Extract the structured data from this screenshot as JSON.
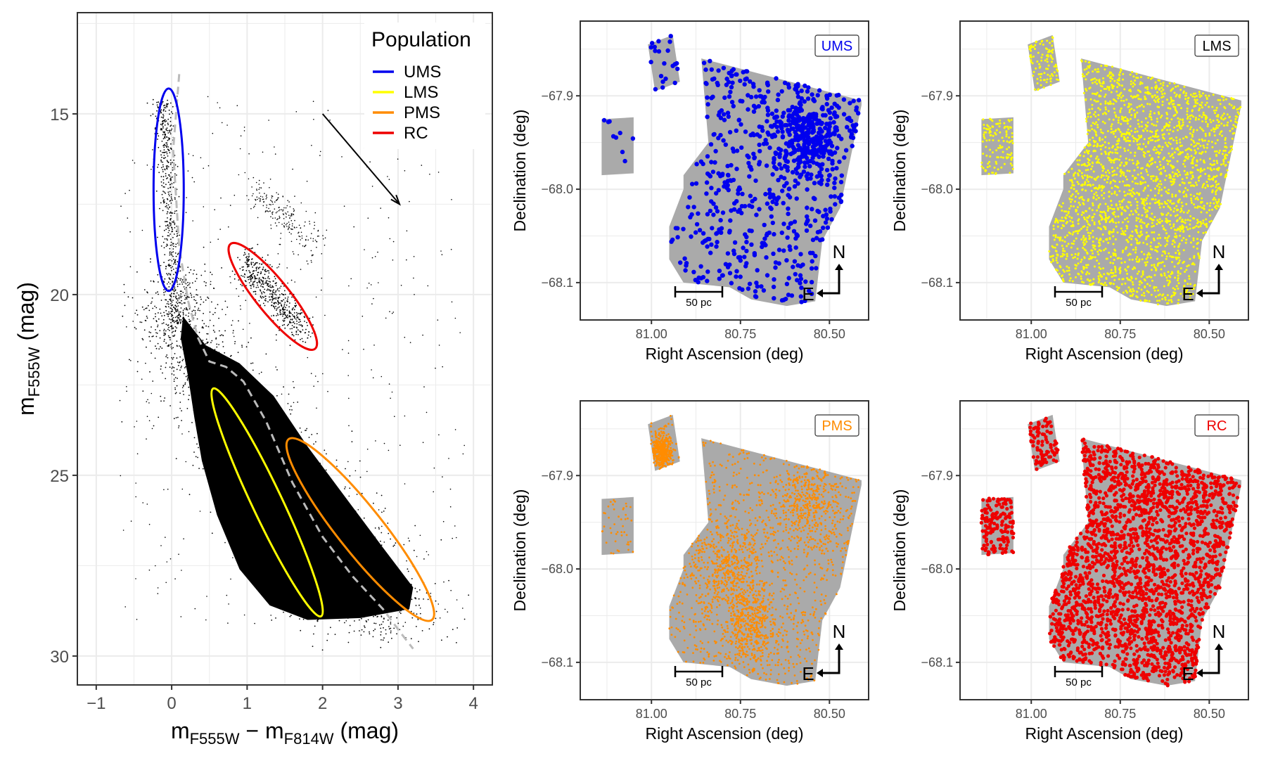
{
  "chart_data": [
    {
      "id": "cmd",
      "type": "scatter",
      "xlabel": "m_F555W − m_F814W (mag)",
      "xlabel_parts": {
        "m1": "m",
        "s1": "F555W",
        "op": " − ",
        "m2": "m",
        "s2": "F814W",
        "unit": " (mag)"
      },
      "ylabel": "m_F555W (mag)",
      "ylabel_parts": {
        "m": "m",
        "s": "F555W",
        "unit": " (mag)"
      },
      "xlim": [
        -1.25,
        4.25
      ],
      "ylim": [
        30.8,
        12.2
      ],
      "y_inverted": true,
      "xticks": [
        -1,
        0,
        1,
        2,
        3,
        4
      ],
      "xtick_labels": [
        "−1",
        "0",
        "1",
        "2",
        "3",
        "4"
      ],
      "yticks": [
        15,
        20,
        25,
        30
      ],
      "ytick_labels": [
        "15",
        "20",
        "25",
        "30"
      ],
      "grid": true,
      "legend": {
        "title": "Population",
        "placement": "top-right",
        "entries": [
          {
            "label": "UMS",
            "color": "#0000ee"
          },
          {
            "label": "LMS",
            "color": "#ffff00"
          },
          {
            "label": "PMS",
            "color": "#ff8c00"
          },
          {
            "label": "RC",
            "color": "#ee0000"
          }
        ]
      },
      "selection_ellipses": [
        {
          "population": "UMS",
          "color": "#0000ee",
          "center": [
            -0.04,
            17.1
          ],
          "semi_axes_data": [
            0.2,
            2.8
          ],
          "angle_deg": 0
        },
        {
          "population": "RC",
          "color": "#ee0000",
          "center_data": [
            1.33,
            20.0
          ],
          "endpoints": [
            [
              0.78,
              18.6
            ],
            [
              1.9,
              21.5
            ]
          ],
          "minor_data": 0.22
        },
        {
          "population": "LMS",
          "color": "#ffff00",
          "endpoints": [
            [
              0.55,
              22.6
            ],
            [
              1.98,
              28.9
            ]
          ],
          "minor_data": 0.2
        },
        {
          "population": "PMS",
          "color": "#ff8c00",
          "endpoints": [
            [
              1.55,
              24.0
            ],
            [
              3.45,
              29.0
            ]
          ],
          "minor_data": 0.3
        }
      ],
      "isochrone": {
        "color": "#bbbbbb",
        "dash": "dashed",
        "points": [
          [
            0.1,
            13.9
          ],
          [
            0.02,
            16.0
          ],
          [
            0.1,
            18.7
          ],
          [
            0.22,
            20.2
          ],
          [
            0.35,
            21.2
          ],
          [
            0.5,
            21.85
          ],
          [
            0.72,
            22.0
          ],
          [
            0.95,
            22.4
          ],
          [
            1.25,
            23.5
          ],
          [
            1.6,
            25.2
          ],
          [
            2.0,
            26.7
          ],
          [
            2.4,
            27.8
          ],
          [
            2.8,
            28.7
          ],
          [
            3.05,
            29.4
          ],
          [
            3.2,
            29.8
          ]
        ]
      },
      "reddening_vector": {
        "start": [
          2.0,
          15.0
        ],
        "end": [
          3.02,
          17.5
        ],
        "color": "#000000"
      }
    },
    {
      "id": "map-ums",
      "type": "scatter",
      "label": "UMS",
      "color": "#0000ee",
      "xlabel": "Right Ascension (deg)",
      "ylabel": "Declination (deg)",
      "xlim": [
        81.2,
        80.39
      ],
      "ylim": [
        -68.14,
        -67.82
      ],
      "xticks": [
        81.0,
        80.75,
        80.5
      ],
      "xtick_labels": [
        "81.00",
        "80.75",
        "80.50"
      ],
      "yticks": [
        -67.9,
        -68.0,
        -68.1
      ],
      "ytick_labels": [
        "−67.9",
        "−68.0",
        "−68.1"
      ],
      "scalebar": "50 pc",
      "compass": {
        "north": "N",
        "east": "E"
      },
      "point_count": 900
    },
    {
      "id": "map-lms",
      "type": "scatter",
      "label": "LMS",
      "color": "#ffff00",
      "xlabel": "Right Ascension (deg)",
      "ylabel": "Declination (deg)",
      "xlim": [
        81.2,
        80.39
      ],
      "ylim": [
        -68.14,
        -67.82
      ],
      "xticks": [
        81.0,
        80.75,
        80.5
      ],
      "xtick_labels": [
        "81.00",
        "80.75",
        "80.50"
      ],
      "yticks": [
        -67.9,
        -68.0,
        -68.1
      ],
      "ytick_labels": [
        "−67.9",
        "−68.0",
        "−68.1"
      ],
      "scalebar": "50 pc",
      "compass": {
        "north": "N",
        "east": "E"
      },
      "point_count": 9000
    },
    {
      "id": "map-pms",
      "type": "scatter",
      "label": "PMS",
      "color": "#ff8c00",
      "xlabel": "Right Ascension (deg)",
      "ylabel": "Declination (deg)",
      "xlim": [
        81.2,
        80.39
      ],
      "ylim": [
        -68.14,
        -67.82
      ],
      "xticks": [
        81.0,
        80.75,
        80.5
      ],
      "xtick_labels": [
        "81.00",
        "80.75",
        "80.50"
      ],
      "yticks": [
        -67.9,
        -68.0,
        -68.1
      ],
      "ytick_labels": [
        "−67.9",
        "−68.0",
        "−68.1"
      ],
      "scalebar": "50 pc",
      "compass": {
        "north": "N",
        "east": "E"
      },
      "point_count": 6000
    },
    {
      "id": "map-rc",
      "type": "scatter",
      "label": "RC",
      "color": "#ee0000",
      "xlabel": "Right Ascension (deg)",
      "ylabel": "Declination (deg)",
      "xlim": [
        81.2,
        80.39
      ],
      "ylim": [
        -68.14,
        -67.82
      ],
      "xticks": [
        81.0,
        80.75,
        80.5
      ],
      "xtick_labels": [
        "81.00",
        "80.75",
        "80.50"
      ],
      "yticks": [
        -67.9,
        -68.0,
        -68.1
      ],
      "ytick_labels": [
        "−67.9",
        "−68.0",
        "−68.1"
      ],
      "scalebar": "50 pc",
      "compass": {
        "north": "N",
        "east": "E"
      },
      "point_count": 3500
    }
  ],
  "colors": {
    "footprint_gray": "#aaaaaa",
    "grid": "#ebebeb",
    "frame": "#333333",
    "stars": "#000000"
  }
}
